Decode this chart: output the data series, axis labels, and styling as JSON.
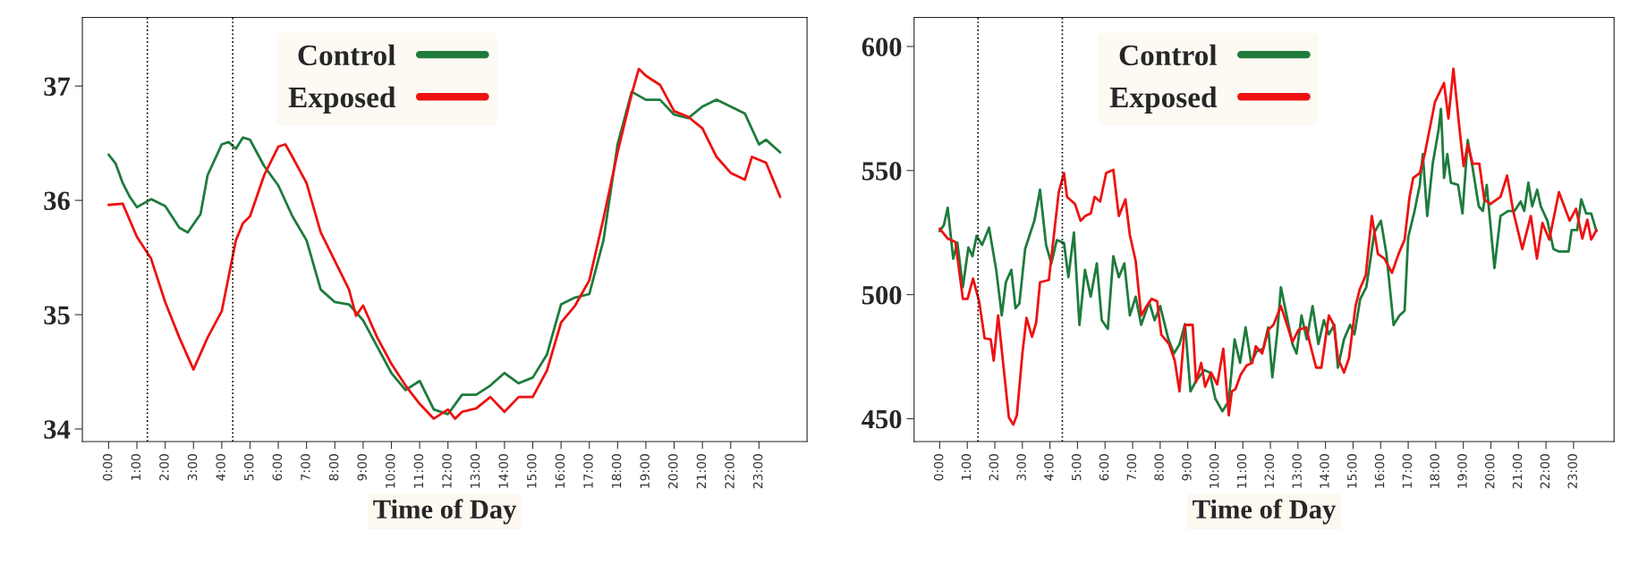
{
  "chart_data": [
    {
      "type": "line",
      "xlabel": "Time of Day",
      "legend": "top",
      "grid": false,
      "xlim": [
        -0.93,
        24.7
      ],
      "ylim": [
        33.89,
        37.6
      ],
      "yticks": [
        34,
        35,
        36,
        37
      ],
      "xticks": [
        {
          "value": 0,
          "label": "0:00"
        },
        {
          "value": 1,
          "label": "1:00"
        },
        {
          "value": 2,
          "label": "2:00"
        },
        {
          "value": 3,
          "label": "3:00"
        },
        {
          "value": 4,
          "label": "4:00"
        },
        {
          "value": 5,
          "label": "5:00"
        },
        {
          "value": 6,
          "label": "6:00"
        },
        {
          "value": 7,
          "label": "7:00"
        },
        {
          "value": 8,
          "label": "8:00"
        },
        {
          "value": 9,
          "label": "9:00"
        },
        {
          "value": 10,
          "label": "10:00"
        },
        {
          "value": 11,
          "label": "11:00"
        },
        {
          "value": 12,
          "label": "12:00"
        },
        {
          "value": 13,
          "label": "13:00"
        },
        {
          "value": 14,
          "label": "14:00"
        },
        {
          "value": 15,
          "label": "15:00"
        },
        {
          "value": 16,
          "label": "16:00"
        },
        {
          "value": 17,
          "label": "17:00"
        },
        {
          "value": 18,
          "label": "18:00"
        },
        {
          "value": 19,
          "label": "19:00"
        },
        {
          "value": 20,
          "label": "20:00"
        },
        {
          "value": 21,
          "label": "21:00"
        },
        {
          "value": 22,
          "label": "22:00"
        },
        {
          "value": 23,
          "label": "23:00"
        }
      ],
      "ref_lines": [
        {
          "axis": "x",
          "value": 1.37,
          "color": "#000000",
          "line_style": "dotted"
        },
        {
          "axis": "x",
          "value": 4.39,
          "color": "#000000",
          "line_style": "dotted"
        }
      ],
      "series": [
        {
          "name": "Control",
          "color": "#1e7b3c",
          "x": [
            0,
            0.25,
            0.5,
            0.75,
            1,
            1.5,
            2,
            2.5,
            2.8,
            3.25,
            3.5,
            4,
            4.25,
            4.5,
            4.75,
            5,
            5.5,
            6,
            6.5,
            7,
            7.5,
            8,
            8.5,
            9,
            9.5,
            10,
            10.5,
            11,
            11.5,
            12,
            12.5,
            13,
            13.5,
            14,
            14.5,
            15,
            15.5,
            16,
            16.5,
            17,
            17.5,
            18,
            18.5,
            19,
            19.5,
            20,
            20.5,
            21,
            21.5,
            22,
            22.5,
            23,
            23.25,
            23.75
          ],
          "values": [
            36.4,
            36.32,
            36.15,
            36.03,
            35.94,
            36.01,
            35.95,
            35.76,
            35.72,
            35.88,
            36.22,
            36.49,
            36.51,
            36.45,
            36.55,
            36.53,
            36.3,
            36.13,
            35.86,
            35.65,
            35.22,
            35.11,
            35.09,
            34.95,
            34.72,
            34.49,
            34.34,
            34.42,
            34.17,
            34.13,
            34.3,
            34.3,
            34.38,
            34.49,
            34.4,
            34.45,
            34.65,
            35.09,
            35.15,
            35.18,
            35.65,
            36.49,
            36.95,
            36.88,
            36.88,
            36.75,
            36.72,
            36.82,
            36.88,
            36.82,
            36.76,
            36.49,
            36.53,
            36.42
          ]
        },
        {
          "name": "Exposed",
          "color": "#ee1111",
          "x": [
            0,
            0.5,
            1,
            1.5,
            2,
            2.5,
            3,
            3.5,
            4,
            4.5,
            4.75,
            5,
            5.5,
            6,
            6.25,
            6.5,
            7,
            7.5,
            8,
            8.5,
            8.75,
            9,
            9.5,
            10,
            10.5,
            11,
            11.5,
            12,
            12.25,
            12.5,
            13,
            13.5,
            14,
            14.5,
            15,
            15.5,
            16,
            16.5,
            17,
            17.5,
            18,
            18.5,
            18.75,
            19,
            19.5,
            20,
            20.5,
            21,
            21.5,
            22,
            22.5,
            22.75,
            23.25,
            23.5,
            23.75
          ],
          "values": [
            35.96,
            35.97,
            35.68,
            35.49,
            35.11,
            34.8,
            34.52,
            34.8,
            35.03,
            35.65,
            35.8,
            35.86,
            36.22,
            36.47,
            36.49,
            36.38,
            36.15,
            35.72,
            35.47,
            35.22,
            34.99,
            35.08,
            34.8,
            34.57,
            34.38,
            34.22,
            34.09,
            34.17,
            34.09,
            34.15,
            34.18,
            34.28,
            34.15,
            34.28,
            34.28,
            34.51,
            34.93,
            35.08,
            35.3,
            35.84,
            36.42,
            36.93,
            37.15,
            37.09,
            37.01,
            36.78,
            36.73,
            36.63,
            36.38,
            36.24,
            36.18,
            36.38,
            36.33,
            36.18,
            36.03
          ]
        }
      ]
    },
    {
      "type": "line",
      "xlabel": "Time of Day",
      "legend": "top",
      "grid": false,
      "xlim": [
        -0.93,
        24.47
      ],
      "ylim": [
        440.8,
        611.7
      ],
      "yticks": [
        450,
        500,
        550,
        600
      ],
      "xticks": [
        {
          "value": 0,
          "label": "0:00"
        },
        {
          "value": 1,
          "label": "1:00"
        },
        {
          "value": 2,
          "label": "2:00"
        },
        {
          "value": 3,
          "label": "3:00"
        },
        {
          "value": 4,
          "label": "4:00"
        },
        {
          "value": 5,
          "label": "5:00"
        },
        {
          "value": 6,
          "label": "6:00"
        },
        {
          "value": 7,
          "label": "7:00"
        },
        {
          "value": 8,
          "label": "8:00"
        },
        {
          "value": 9,
          "label": "9:00"
        },
        {
          "value": 10,
          "label": "10:00"
        },
        {
          "value": 11,
          "label": "11:00"
        },
        {
          "value": 12,
          "label": "12:00"
        },
        {
          "value": 13,
          "label": "13:00"
        },
        {
          "value": 14,
          "label": "14:00"
        },
        {
          "value": 15,
          "label": "15:00"
        },
        {
          "value": 16,
          "label": "16:00"
        },
        {
          "value": 17,
          "label": "17:00"
        },
        {
          "value": 18,
          "label": "18:00"
        },
        {
          "value": 19,
          "label": "19:00"
        },
        {
          "value": 20,
          "label": "20:00"
        },
        {
          "value": 21,
          "label": "21:00"
        },
        {
          "value": 22,
          "label": "22:00"
        },
        {
          "value": 23,
          "label": "23:00"
        }
      ],
      "ref_lines": [
        {
          "axis": "x",
          "value": 1.39,
          "color": "#000000",
          "line_style": "dotted"
        },
        {
          "axis": "x",
          "value": 4.45,
          "color": "#000000",
          "line_style": "dotted"
        }
      ],
      "series": [
        {
          "name": "Control",
          "color": "#1e7b3c",
          "x": [
            0,
            0.15,
            0.29,
            0.49,
            0.64,
            0.84,
            1.04,
            1.19,
            1.34,
            1.54,
            1.79,
            2.05,
            2.25,
            2.4,
            2.6,
            2.75,
            2.89,
            3.1,
            3.44,
            3.64,
            3.86,
            4.05,
            4.25,
            4.51,
            4.67,
            4.87,
            5.07,
            5.27,
            5.48,
            5.7,
            5.88,
            6.1,
            6.3,
            6.5,
            6.7,
            6.9,
            7.11,
            7.31,
            7.6,
            7.8,
            8.0,
            8.3,
            8.5,
            8.7,
            8.9,
            9.1,
            9.3,
            9.6,
            9.8,
            10.0,
            10.26,
            10.49,
            10.7,
            10.9,
            11.1,
            11.3,
            11.5,
            11.74,
            11.92,
            12.07,
            12.25,
            12.38,
            12.66,
            12.8,
            12.95,
            13.13,
            13.32,
            13.53,
            13.74,
            13.94,
            14.12,
            14.32,
            14.45,
            14.67,
            14.89,
            15.05,
            15.26,
            15.48,
            15.66,
            15.77,
            16.01,
            16.21,
            16.47,
            16.68,
            16.87,
            17.0,
            17.23,
            17.42,
            17.53,
            17.69,
            17.89,
            18.1,
            18.19,
            18.3,
            18.42,
            18.55,
            18.81,
            18.97,
            19.16,
            19.34,
            19.56,
            19.71,
            19.85,
            20.13,
            20.35,
            20.62,
            20.86,
            21.08,
            21.21,
            21.36,
            21.5,
            21.68,
            21.81,
            22.05,
            22.27,
            22.45,
            22.82,
            22.93,
            23.13,
            23.28,
            23.46,
            23.64,
            23.83
          ],
          "values": [
            525.6,
            528,
            535,
            514.5,
            521,
            503,
            519,
            515.5,
            523.7,
            520,
            527,
            510,
            491.6,
            505,
            510,
            494.5,
            496.4,
            518.4,
            530,
            542.3,
            520,
            512.6,
            522,
            520.8,
            507,
            525,
            487.8,
            510,
            499.2,
            512.6,
            489.7,
            486.2,
            515.5,
            507,
            512.6,
            491.6,
            499.2,
            487.8,
            497,
            489.7,
            495.4,
            482,
            476.3,
            480,
            488.1,
            461,
            465.2,
            469.6,
            468.6,
            458.1,
            453,
            457.2,
            482,
            472.5,
            486.8,
            472.5,
            477.2,
            478.2,
            486.8,
            466.7,
            484.9,
            503,
            487.8,
            480.1,
            476.3,
            491.6,
            482,
            495.4,
            480.1,
            489.7,
            484,
            487.8,
            470.6,
            482,
            487.8,
            484,
            498.3,
            503,
            516.4,
            525,
            529.8,
            516.4,
            487.8,
            491.6,
            493.5,
            523.1,
            533.7,
            544.2,
            556.6,
            531.7,
            552.8,
            566.2,
            574.8,
            547,
            556.6,
            545.1,
            544.2,
            532.7,
            562.3,
            550.9,
            535.6,
            533.7,
            544.2,
            510.7,
            531.7,
            533.7,
            533.7,
            537.5,
            533.7,
            545.1,
            535.6,
            542.3,
            535.6,
            529.8,
            518.4,
            517.4,
            517.4,
            526,
            526,
            538.4,
            532.7,
            532.7,
            525.6
          ]
        },
        {
          "name": "Exposed",
          "color": "#ee1111",
          "x": [
            0,
            0.29,
            0.57,
            0.84,
            1.01,
            1.21,
            1.43,
            1.63,
            1.85,
            1.96,
            2.12,
            2.31,
            2.51,
            2.67,
            2.8,
            3.0,
            3.15,
            3.35,
            3.5,
            3.64,
            3.96,
            4.32,
            4.51,
            4.62,
            4.91,
            5.11,
            5.29,
            5.48,
            5.62,
            5.82,
            6.04,
            6.3,
            6.5,
            6.74,
            6.9,
            7.11,
            7.31,
            7.51,
            7.69,
            7.89,
            8.04,
            8.32,
            8.53,
            8.7,
            8.9,
            9.18,
            9.3,
            9.49,
            9.63,
            9.85,
            10.07,
            10.29,
            10.49,
            10.6,
            10.73,
            10.92,
            11.14,
            11.34,
            11.47,
            11.7,
            11.92,
            12.11,
            12.38,
            12.58,
            12.8,
            13.02,
            13.3,
            13.44,
            13.66,
            13.85,
            14.12,
            14.3,
            14.45,
            14.67,
            14.85,
            15.09,
            15.24,
            15.46,
            15.68,
            15.9,
            16.14,
            16.41,
            16.65,
            16.87,
            17.05,
            17.18,
            17.42,
            17.6,
            17.97,
            18.3,
            18.46,
            18.64,
            18.85,
            19.01,
            19.16,
            19.34,
            19.58,
            19.76,
            19.98,
            20.35,
            20.59,
            20.81,
            21.14,
            21.45,
            21.67,
            21.87,
            22.12,
            22.47,
            22.86,
            23.09,
            23.32,
            23.5,
            23.64,
            23.83
          ],
          "values": [
            526.6,
            522.6,
            521.2,
            498.3,
            498.3,
            506.5,
            497.3,
            482.4,
            482,
            473.4,
            491.6,
            471.5,
            450.5,
            447.6,
            451.4,
            476.3,
            490.6,
            483,
            488.7,
            505,
            505.9,
            541.3,
            549,
            539.4,
            536.5,
            529.8,
            531.7,
            532.7,
            539.4,
            537.5,
            549,
            550.3,
            531.7,
            538.4,
            524,
            513.6,
            491.6,
            495.4,
            498.3,
            497.3,
            483.9,
            480.1,
            473.4,
            461,
            487.8,
            487.8,
            464.8,
            472.5,
            462.9,
            468.6,
            463.8,
            478.2,
            451.4,
            461,
            461.9,
            467.7,
            471.5,
            472.5,
            479.2,
            476.3,
            485.8,
            487.8,
            495.4,
            488.7,
            481,
            485.8,
            486.8,
            480.1,
            470.6,
            470.6,
            491.6,
            487.8,
            474.4,
            468.6,
            474.4,
            495.4,
            502.1,
            507.8,
            531.7,
            516.4,
            514.5,
            508.8,
            516.4,
            522.2,
            539.4,
            547,
            549,
            556.6,
            577.6,
            585.3,
            571,
            591,
            568.1,
            551.8,
            560.4,
            552.8,
            552.8,
            538.4,
            536.5,
            539.4,
            548,
            533.7,
            518.4,
            531.7,
            514.5,
            528.9,
            522.2,
            541.3,
            529.8,
            534.6,
            522.6,
            530.2,
            522.2,
            526
          ]
        }
      ]
    }
  ]
}
